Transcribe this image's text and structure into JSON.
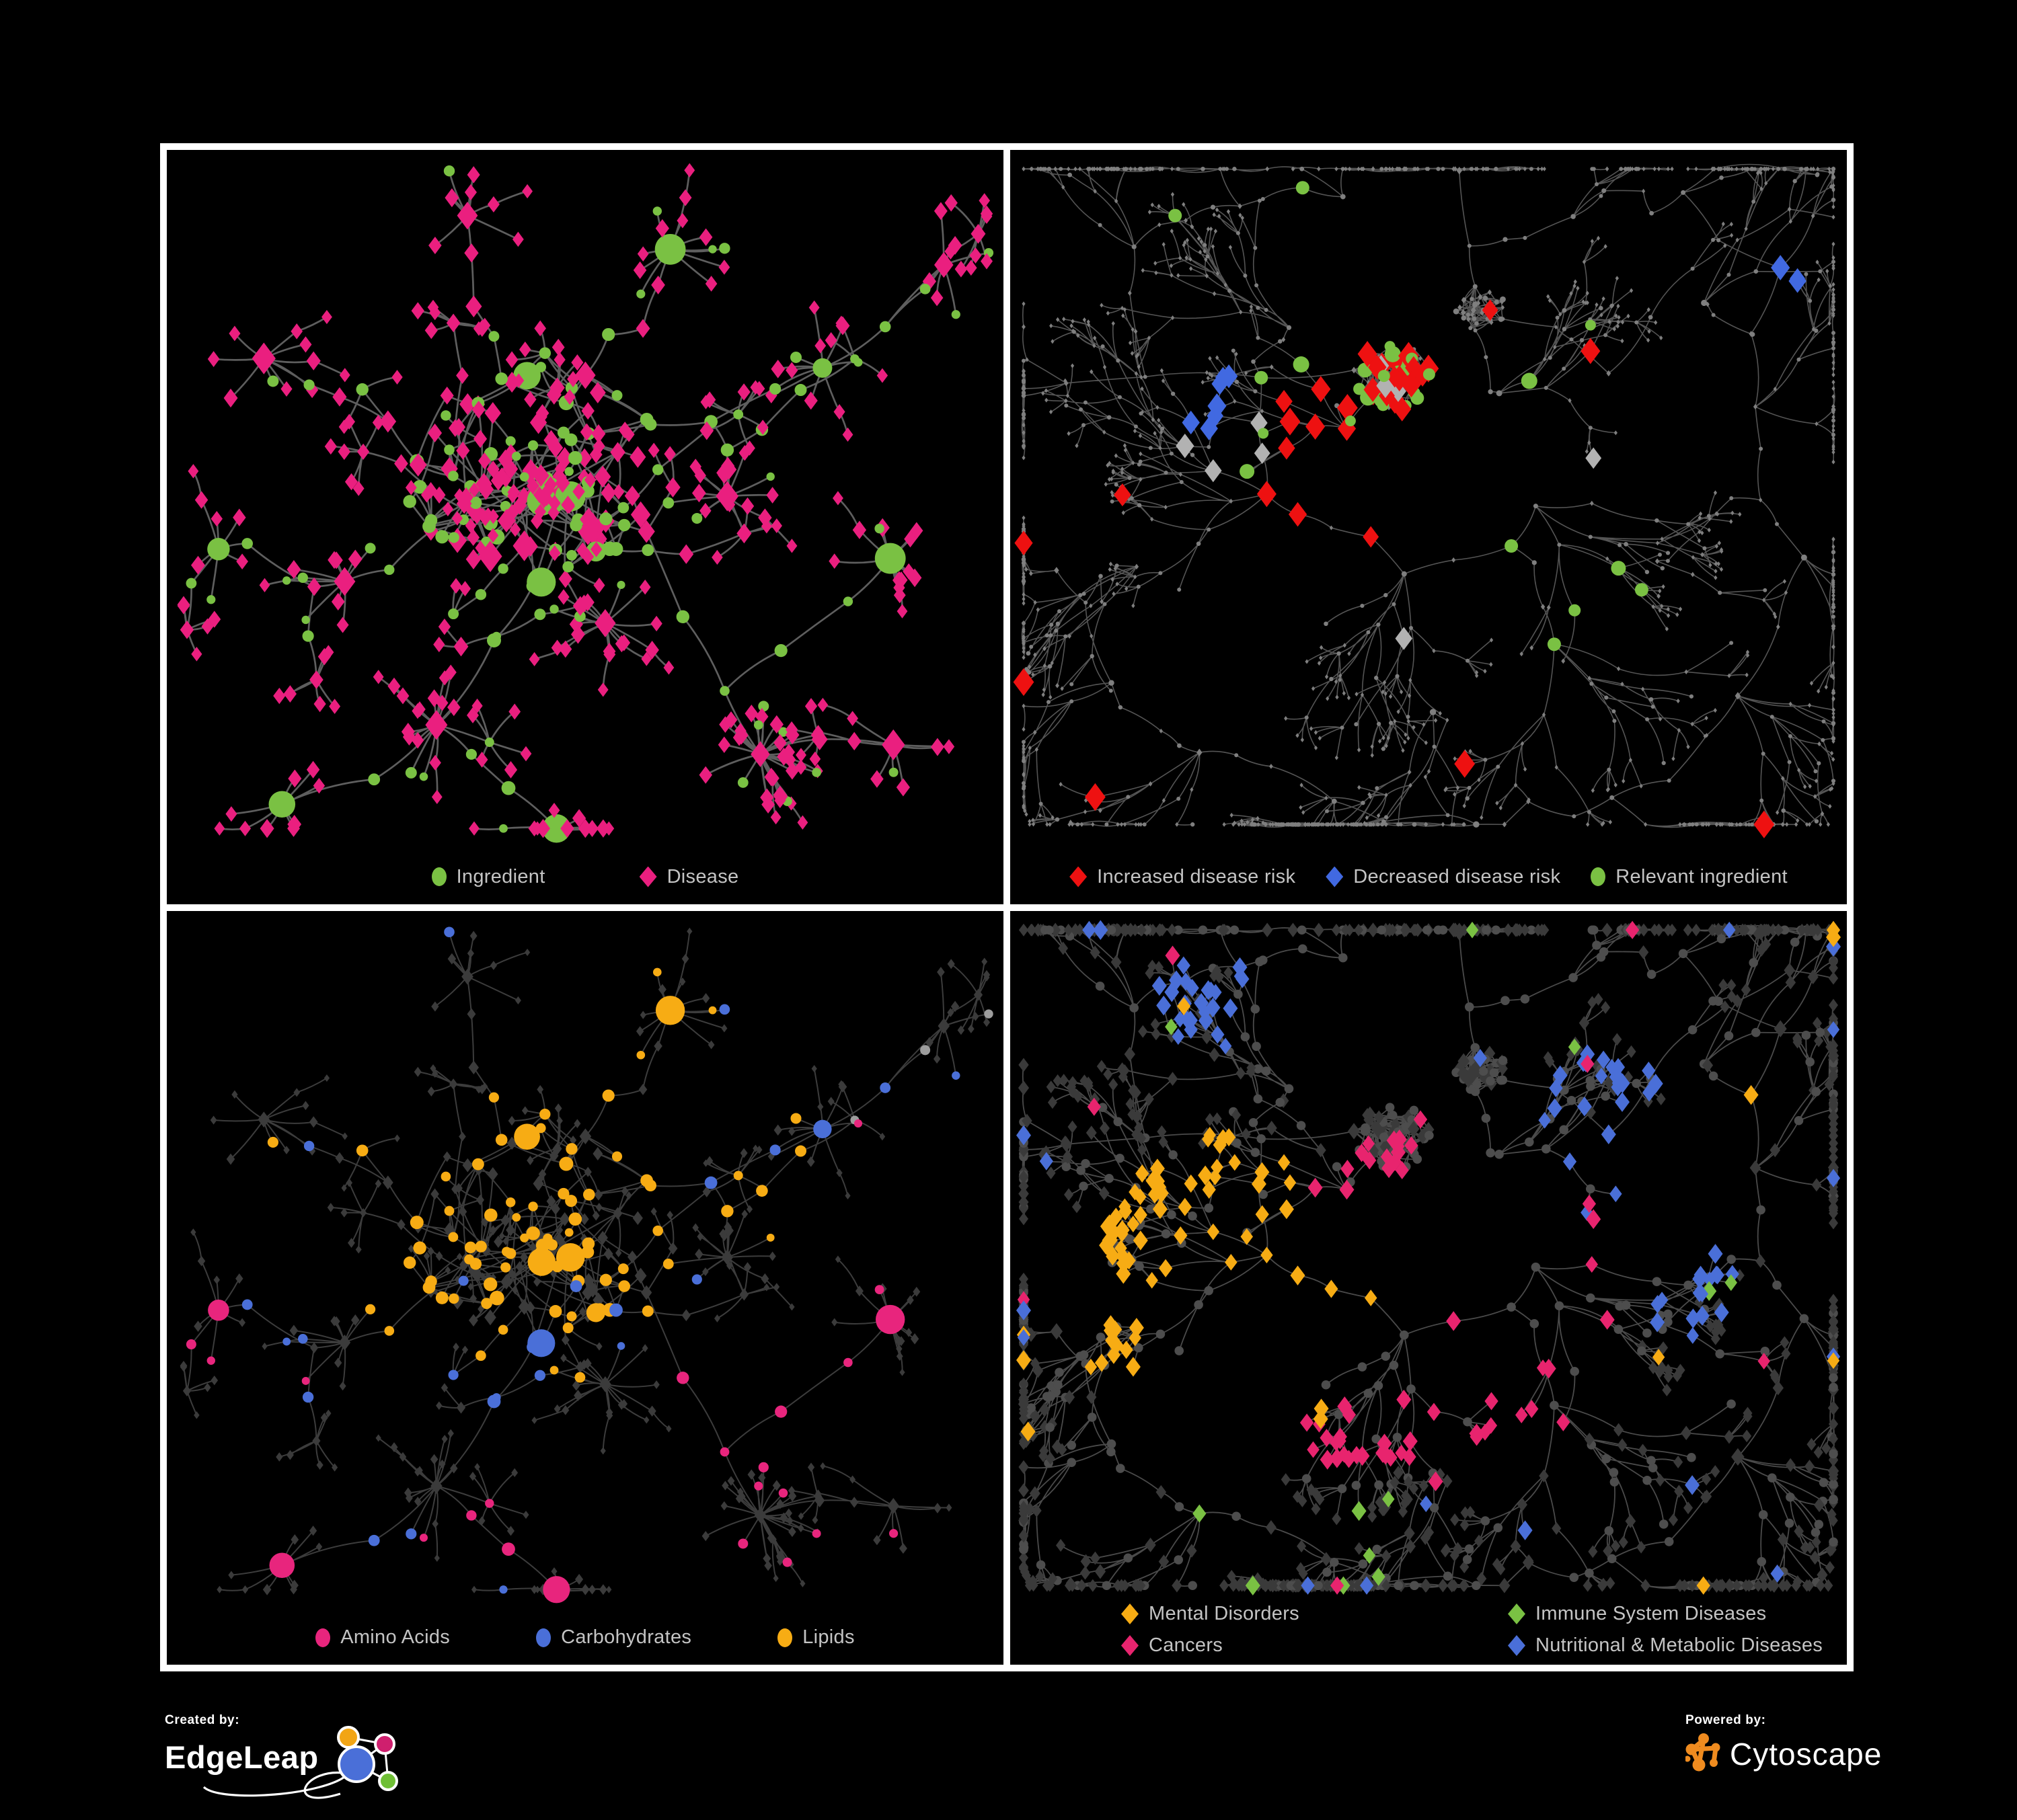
{
  "page": {
    "background": "#000000",
    "frame_color": "#ffffff",
    "legend_text_color": "#c4c4c4"
  },
  "panels": [
    {
      "name": "ingredient-disease-network",
      "legend": [
        {
          "label": "Ingredient",
          "shape": "ellipse",
          "color": "#7ac143"
        },
        {
          "label": "Disease",
          "shape": "diamond",
          "color": "#ea1f7f"
        }
      ],
      "style": {
        "edge": "#686868",
        "ingredient": "#7ac143",
        "disease": "#ea1f7f"
      }
    },
    {
      "name": "disease-risk-network",
      "legend": [
        {
          "label": "Increased disease risk",
          "shape": "diamond",
          "color": "#ee1111"
        },
        {
          "label": "Decreased disease risk",
          "shape": "diamond",
          "color": "#4169e1"
        },
        {
          "label": "Relevant ingredient",
          "shape": "ellipse",
          "color": "#7ac143"
        }
      ],
      "style": {
        "edge": "#636363",
        "base": "#7f7f7f",
        "increased": "#ee1111",
        "decreased": "#4169e1",
        "neutral": "#b2b2b2",
        "relevant": "#7ac143"
      }
    },
    {
      "name": "ingredient-class-network",
      "legend": [
        {
          "label": "Amino Acids",
          "shape": "ellipse",
          "color": "#e8257d"
        },
        {
          "label": "Carbohydrates",
          "shape": "ellipse",
          "color": "#4a6fd8"
        },
        {
          "label": "Lipids",
          "shape": "ellipse",
          "color": "#f7ac14"
        }
      ],
      "style": {
        "edge": "#8f8f8f",
        "base_ingredient": "#9d9d9d",
        "disease": "#3b3b3b",
        "amino": "#e8257d",
        "carbo": "#4a6fd8",
        "lipid": "#f7ac14"
      }
    },
    {
      "name": "disease-class-network",
      "legend": [
        {
          "label": "Mental Disorders",
          "shape": "diamond",
          "color": "#f7ac14"
        },
        {
          "label": "Immune System Diseases",
          "shape": "diamond",
          "color": "#7ac143"
        },
        {
          "label": "Cancers",
          "shape": "diamond",
          "color": "#e8246e"
        },
        {
          "label": "Nutritional & Metabolic Diseases",
          "shape": "diamond",
          "color": "#4a6fd8"
        }
      ],
      "style": {
        "edge": "#5d5d5d",
        "base_disease": "#3a3a3a",
        "base_ingredient": "#4d4d4d",
        "mental": "#f7ac14",
        "immune": "#7ac143",
        "cancer": "#e8246e",
        "nutritional": "#4a6fd8"
      }
    }
  ],
  "footer": {
    "created_by": "Created by:",
    "brand_left": "EdgeLeap",
    "powered_by": "Powered by:",
    "brand_right": "Cytoscape",
    "edgeleap_colors": {
      "blue": "#4a6fd8",
      "orange": "#f2a515",
      "pink": "#cf1f6e",
      "green": "#6fbf35"
    },
    "cytoscape_orange": "#ef8b1f"
  }
}
